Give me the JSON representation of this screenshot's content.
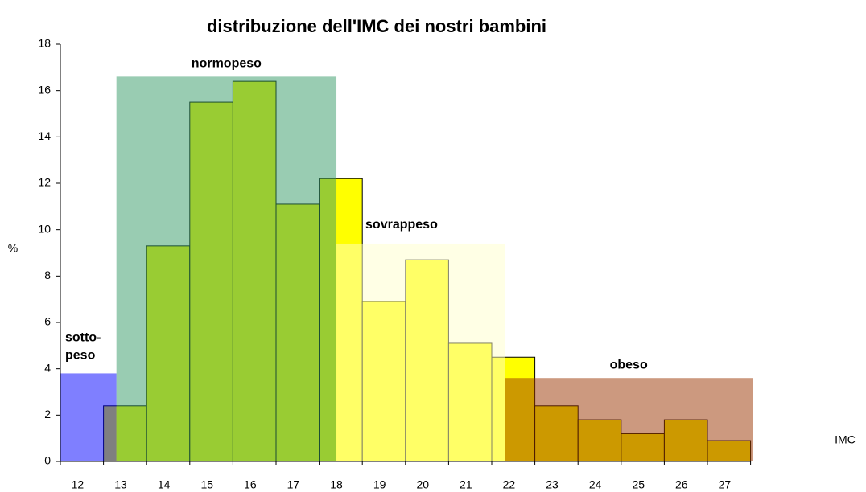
{
  "chart_data": {
    "type": "bar",
    "title": "distribuzione dell'IMC dei nostri bambini",
    "y_label": "%",
    "x_label": "IMC",
    "categories": [
      "12",
      "13",
      "14",
      "15",
      "16",
      "17",
      "18",
      "19",
      "20",
      "21",
      "22",
      "23",
      "24",
      "25",
      "26",
      "27"
    ],
    "values": [
      null,
      2.4,
      9.3,
      15.5,
      16.4,
      11.1,
      12.2,
      6.9,
      8.7,
      5.1,
      4.5,
      2.4,
      1.8,
      1.2,
      1.8,
      0.9
    ],
    "color": "#ffff00",
    "ylim": [
      0,
      18
    ],
    "yticks": [
      0,
      2,
      4,
      6,
      8,
      10,
      12,
      14,
      16,
      18
    ],
    "regions": [
      {
        "label": [
          "sotto-",
          "peso"
        ],
        "color": "#0000ff",
        "x": [
          11.5,
          12.8
        ],
        "height": 3.8
      },
      {
        "label": [
          "normopeso"
        ],
        "color": "#339966",
        "x": [
          12.8,
          17.9
        ],
        "height": 16.6
      },
      {
        "label": [
          "sovrappeso"
        ],
        "color": "#ffffcc",
        "x": [
          17.9,
          21.8
        ],
        "height": 9.4
      },
      {
        "label": [
          "obeso"
        ],
        "color": "#993300",
        "x": [
          21.8,
          27.55
        ],
        "height": 3.6
      }
    ]
  }
}
